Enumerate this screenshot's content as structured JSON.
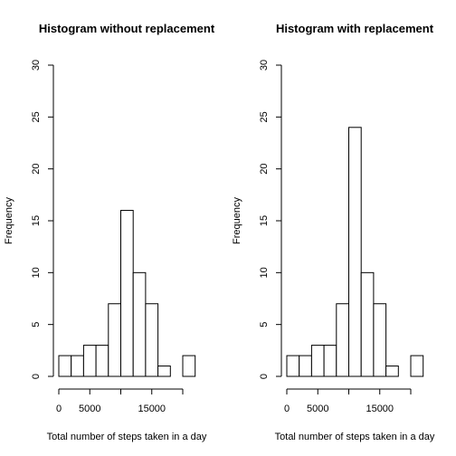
{
  "chart_data": [
    {
      "type": "bar",
      "title": "Histogram without replacement",
      "xlabel": "Total number of steps taken in a day",
      "ylabel": "Frequency",
      "bin_width": 2000,
      "bin_start": 0,
      "values": [
        2,
        2,
        3,
        3,
        7,
        16,
        10,
        7,
        1,
        0,
        2
      ],
      "xlim": [
        0,
        22000
      ],
      "ylim": [
        0,
        30
      ],
      "x_ticks": [
        0,
        5000,
        15000
      ],
      "x_tick_marks": [
        0,
        5000,
        10000,
        15000,
        20000
      ],
      "y_ticks": [
        0,
        5,
        10,
        15,
        20,
        25,
        30
      ],
      "grid": false
    },
    {
      "type": "bar",
      "title": "Histogram with replacement",
      "xlabel": "Total number of steps taken in a day",
      "ylabel": "Frequency",
      "bin_width": 2000,
      "bin_start": 0,
      "values": [
        2,
        2,
        3,
        3,
        7,
        24,
        10,
        7,
        1,
        0,
        2
      ],
      "xlim": [
        0,
        22000
      ],
      "ylim": [
        0,
        30
      ],
      "x_ticks": [
        0,
        5000,
        15000
      ],
      "x_tick_marks": [
        0,
        5000,
        10000,
        15000,
        20000
      ],
      "y_ticks": [
        0,
        5,
        10,
        15,
        20,
        25,
        30
      ],
      "grid": false
    }
  ]
}
